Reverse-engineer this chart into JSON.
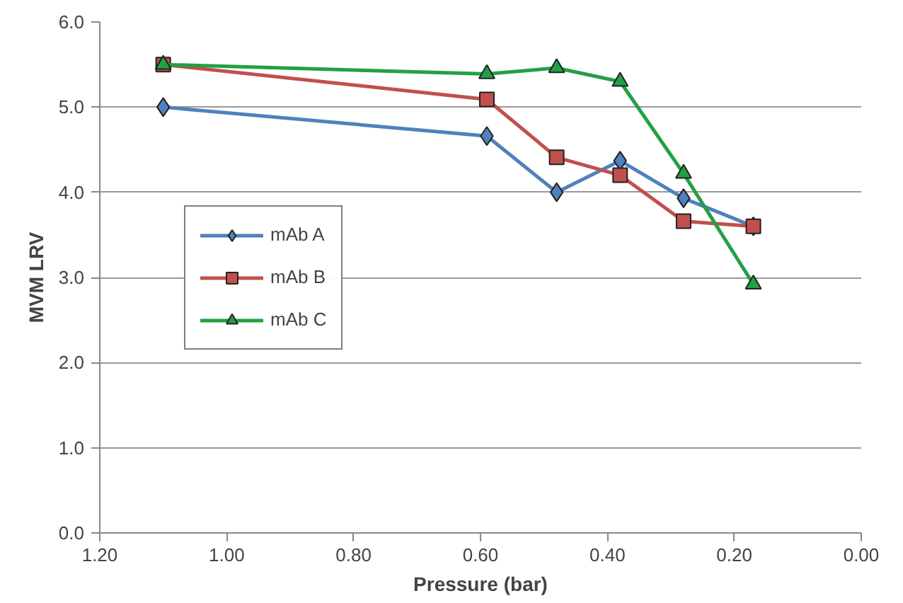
{
  "chart_data": {
    "type": "line",
    "xlabel": "Pressure (bar)",
    "ylabel": "MVM LRV",
    "xlim": [
      1.2,
      0.0
    ],
    "xticks": [
      {
        "value": 1.2,
        "label": "1.20"
      },
      {
        "value": 1.0,
        "label": "1.00"
      },
      {
        "value": 0.8,
        "label": "0.80"
      },
      {
        "value": 0.6,
        "label": "0.60"
      },
      {
        "value": 0.4,
        "label": "0.40"
      },
      {
        "value": 0.2,
        "label": "0.20"
      },
      {
        "value": 0.0,
        "label": "0.00"
      }
    ],
    "ylim": [
      0.0,
      6.0
    ],
    "yticks": [
      {
        "value": 0,
        "label": "0.0"
      },
      {
        "value": 1,
        "label": "1.0"
      },
      {
        "value": 2,
        "label": "2.0"
      },
      {
        "value": 3,
        "label": "3.0"
      },
      {
        "value": 4,
        "label": "4.0"
      },
      {
        "value": 5,
        "label": "5.0"
      },
      {
        "value": 6,
        "label": "6.0"
      }
    ],
    "x": [
      1.1,
      0.59,
      0.48,
      0.38,
      0.28,
      0.17
    ],
    "series": [
      {
        "name": "mAb A",
        "color": "#4f81bd",
        "marker": "diamond",
        "values": [
          5.0,
          4.66,
          4.0,
          4.37,
          3.93,
          3.6
        ]
      },
      {
        "name": "mAb B",
        "color": "#c0504d",
        "marker": "square",
        "values": [
          5.5,
          5.09,
          4.41,
          4.2,
          3.66,
          3.6
        ]
      },
      {
        "name": "mAb C",
        "color": "#23a045",
        "marker": "triangle",
        "values": [
          5.5,
          5.39,
          5.46,
          5.3,
          4.22,
          2.92
        ]
      }
    ],
    "grid": "y",
    "legend": "left",
    "line_style": "solid"
  }
}
